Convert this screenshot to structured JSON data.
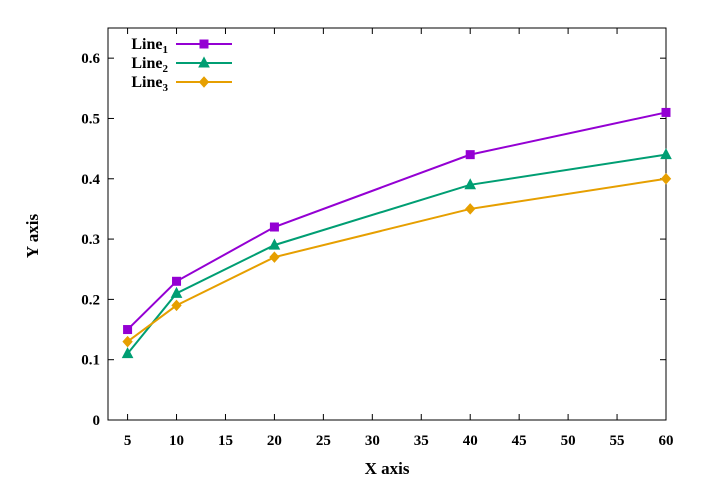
{
  "chart_data": {
    "type": "line",
    "xlabel": "X axis",
    "ylabel": "Y axis",
    "xlim": [
      3,
      60
    ],
    "ylim": [
      0,
      0.65
    ],
    "x_ticks": [
      5,
      10,
      15,
      20,
      25,
      30,
      35,
      40,
      45,
      50,
      55,
      60
    ],
    "y_ticks": [
      0,
      0.1,
      0.2,
      0.3,
      0.4,
      0.5,
      0.6
    ],
    "x_tick_labels": [
      "5",
      "10",
      "15",
      "20",
      "25",
      "30",
      "35",
      "40",
      "45",
      "50",
      "55",
      "60"
    ],
    "y_tick_labels": [
      "0",
      "0.1",
      "0.2",
      "0.3",
      "0.4",
      "0.5",
      "0.6"
    ],
    "grid": false,
    "legend_position": "top-left",
    "x": [
      5,
      10,
      20,
      40,
      60
    ],
    "series": [
      {
        "name": "Line",
        "subscript": "1",
        "color": "#9400d3",
        "marker": "square",
        "values": [
          0.15,
          0.23,
          0.32,
          0.44,
          0.51
        ]
      },
      {
        "name": "Line",
        "subscript": "2",
        "color": "#009e73",
        "marker": "triangle",
        "values": [
          0.11,
          0.21,
          0.29,
          0.39,
          0.44
        ]
      },
      {
        "name": "Line",
        "subscript": "3",
        "color": "#e69f00",
        "marker": "diamond",
        "values": [
          0.13,
          0.19,
          0.27,
          0.35,
          0.4
        ]
      }
    ]
  }
}
